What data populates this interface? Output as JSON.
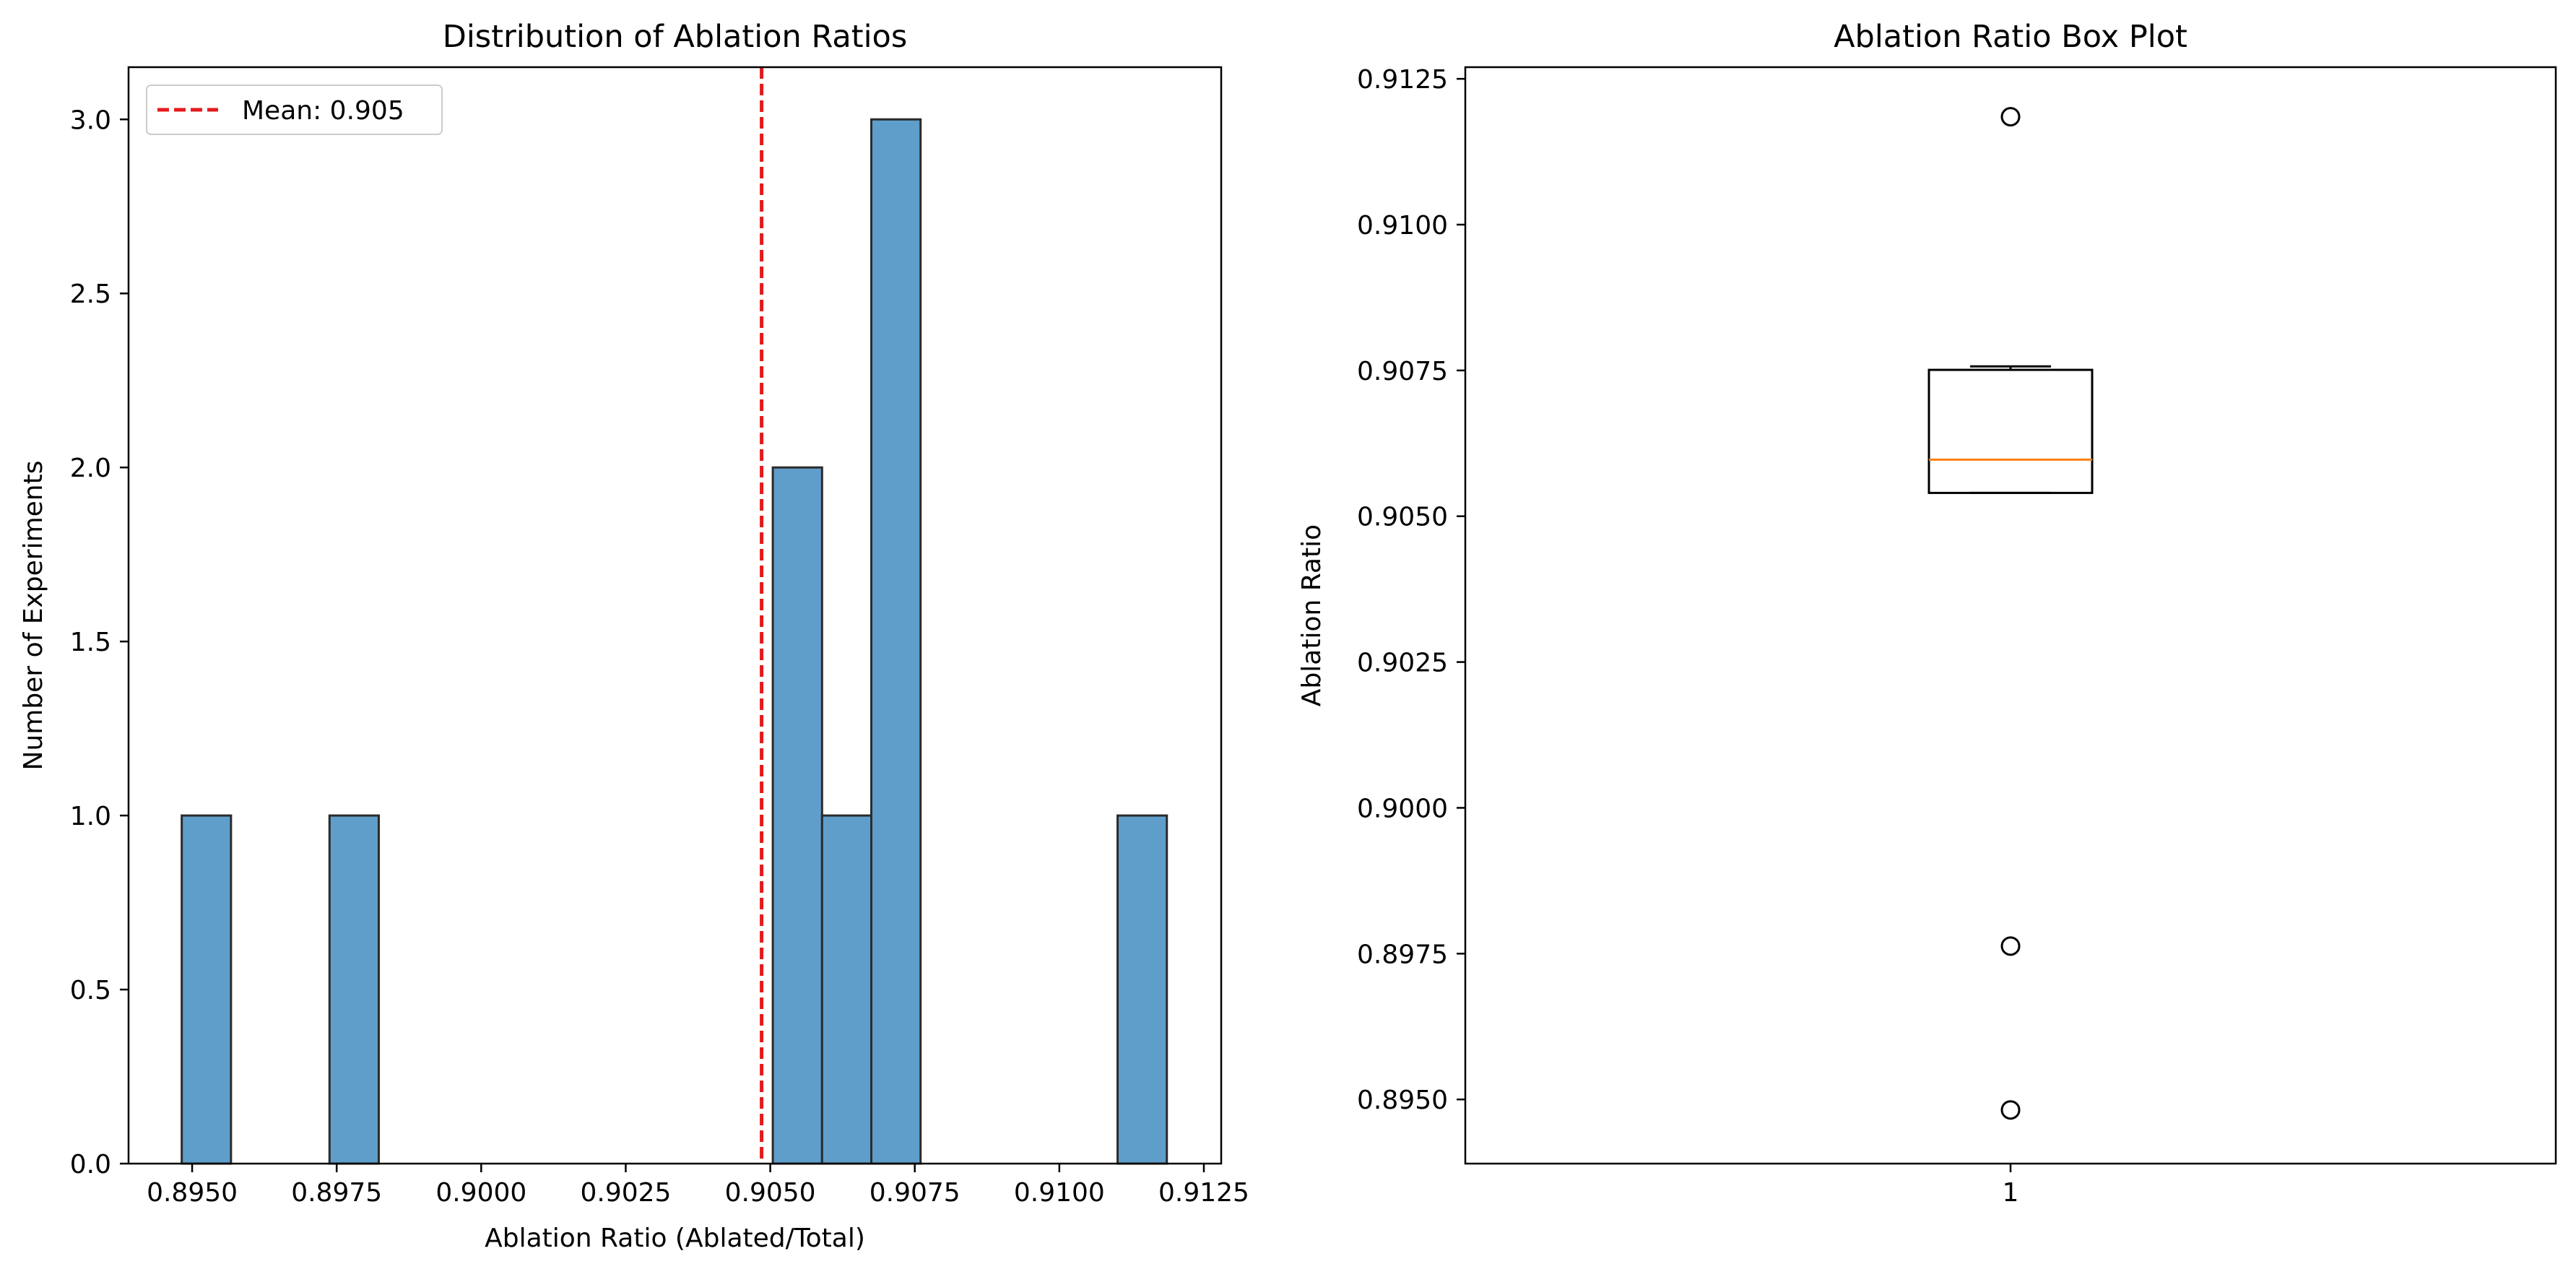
{
  "chart_data": [
    {
      "type": "bar",
      "subtype": "histogram",
      "title": "Distribution of Ablation Ratios",
      "xlabel": "Ablation Ratio (Ablated/Total)",
      "ylabel": "Number of Experiments",
      "xlim": [
        0.8939,
        0.9128
      ],
      "ylim": [
        0,
        3.15
      ],
      "xticks": [
        0.895,
        0.8975,
        0.9,
        0.9025,
        0.905,
        0.9075,
        0.91,
        0.9125
      ],
      "xtick_labels": [
        "0.8950",
        "0.8975",
        "0.9000",
        "0.9025",
        "0.9050",
        "0.9075",
        "0.9100",
        "0.9125"
      ],
      "yticks": [
        0,
        0.5,
        1,
        1.5,
        2,
        2.5,
        3
      ],
      "ytick_labels": [
        "0.0",
        "0.5",
        "1.0",
        "1.5",
        "2.0",
        "2.5",
        "3.0"
      ],
      "bin_start": 0.89482,
      "bin_width": 0.000852,
      "counts": [
        1,
        0,
        0,
        1,
        0,
        0,
        0,
        0,
        0,
        0,
        0,
        0,
        2,
        1,
        3,
        0,
        0,
        0,
        0,
        1
      ],
      "bar_color": "#5f9ecb",
      "bar_edge": "#2b2b2b",
      "mean_line": {
        "value": 0.90485,
        "label": "Mean: 0.905",
        "color": "#e41a1c"
      },
      "legend_position": "upper-left",
      "grid": false
    },
    {
      "type": "box",
      "title": "Ablation Ratio Box Plot",
      "ylabel": "Ablation Ratio",
      "categories": [
        "1"
      ],
      "ylim": [
        0.8939,
        0.9127
      ],
      "yticks": [
        0.895,
        0.8975,
        0.9,
        0.9025,
        0.905,
        0.9075,
        0.91,
        0.9125
      ],
      "ytick_labels": [
        "0.8950",
        "0.8975",
        "0.9000",
        "0.9025",
        "0.9050",
        "0.9075",
        "0.9100",
        "0.9125"
      ],
      "box": {
        "q1": 0.9054,
        "median": 0.90597,
        "q3": 0.90751,
        "whisker_low": 0.9054,
        "whisker_high": 0.90757
      },
      "outliers": [
        0.91185,
        0.89763,
        0.89482
      ],
      "median_color": "#ff7f0e",
      "grid": false
    }
  ]
}
